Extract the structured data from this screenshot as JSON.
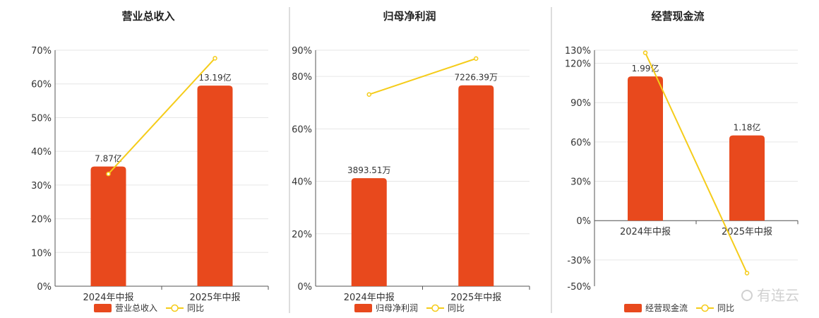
{
  "colors": {
    "bar": "#e8491d",
    "line": "#f5cc1a",
    "grid": "#e6e6e6",
    "axis": "#555555",
    "divider": "#bbbbbb"
  },
  "watermark": {
    "text": "有连云"
  },
  "chart_data": [
    {
      "type": "bar",
      "title": "营业总收入",
      "categories": [
        "2024年中报",
        "2025年中报"
      ],
      "bar_labels": [
        "7.87亿",
        "13.19亿"
      ],
      "ylim": [
        0,
        70
      ],
      "yticks": [
        0,
        10,
        20,
        30,
        40,
        50,
        60,
        70
      ],
      "tick_suffix": "%",
      "bar_percent": [
        35.5,
        59.5
      ],
      "line_percent": [
        33.3,
        67.6
      ],
      "legend": {
        "bar": "营业总收入",
        "line": "同比"
      }
    },
    {
      "type": "bar",
      "title": "归母净利润",
      "categories": [
        "2024年中报",
        "2025年中报"
      ],
      "bar_labels": [
        "3893.51万",
        "7226.39万"
      ],
      "ylim": [
        0,
        90
      ],
      "yticks": [
        0,
        20,
        40,
        60,
        80,
        90
      ],
      "tick_suffix": "%",
      "bar_percent": [
        41.2,
        76.6
      ],
      "line_percent": [
        73.1,
        86.8
      ],
      "legend": {
        "bar": "归母净利润",
        "line": "同比"
      }
    },
    {
      "type": "bar",
      "title": "经营现金流",
      "categories": [
        "2024年中报",
        "2025年中报"
      ],
      "bar_labels": [
        "1.99亿",
        "1.18亿"
      ],
      "ylim": [
        -50,
        130
      ],
      "yticks": [
        -50,
        -30,
        0,
        30,
        60,
        90,
        120,
        130
      ],
      "tick_suffix": "%",
      "bar_percent": [
        110.0,
        65.0
      ],
      "line_percent": [
        128.0,
        -40.0
      ],
      "legend": {
        "bar": "经营现金流",
        "line": "同比"
      }
    }
  ]
}
